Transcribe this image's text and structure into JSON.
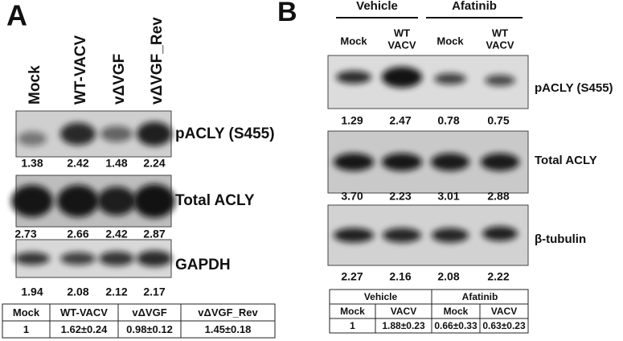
{
  "panel_a": {
    "label": "A",
    "lanes": [
      "Mock",
      "WT-VACV",
      "vΔVGF",
      "vΔVGF_Rev"
    ],
    "blots": [
      {
        "label": "pACLY (S455)",
        "values": [
          "1.38",
          "2.42",
          "1.48",
          "2.24"
        ]
      },
      {
        "label": "Total ACLY",
        "values": [
          "2.73",
          "2.66",
          "2.42",
          "2.87"
        ]
      },
      {
        "label": "GAPDH",
        "values": [
          "1.94",
          "2.08",
          "2.12",
          "2.17"
        ]
      }
    ],
    "table": {
      "header": [
        "Mock",
        "WT-VACV",
        "vΔVGF",
        "vΔVGF_Rev"
      ],
      "row": [
        "1",
        "1.62±0.24",
        "0.98±0.12",
        "1.45±0.18"
      ]
    }
  },
  "panel_b": {
    "label": "B",
    "groups": [
      "Vehicle",
      "Afatinib"
    ],
    "lanes": [
      [
        "Mock"
      ],
      [
        "WT",
        "VACV"
      ],
      [
        "Mock"
      ],
      [
        "WT",
        "VACV"
      ]
    ],
    "blots": [
      {
        "label": "pACLY (S455)",
        "values": [
          "1.29",
          "2.47",
          "0.78",
          "0.75"
        ]
      },
      {
        "label": "Total ACLY",
        "values": [
          "3.70",
          "2.23",
          "3.01",
          "2.88"
        ]
      },
      {
        "label": "β-tubulin",
        "values": [
          "2.27",
          "2.16",
          "2.08",
          "2.22"
        ]
      }
    ],
    "table": {
      "groups": [
        "Vehicle",
        "Afatinib"
      ],
      "header": [
        "Mock",
        "VACV",
        "Mock",
        "VACV"
      ],
      "row": [
        "1",
        "1.88±0.23",
        "0.66±0.33",
        "0.63±0.23"
      ]
    }
  }
}
